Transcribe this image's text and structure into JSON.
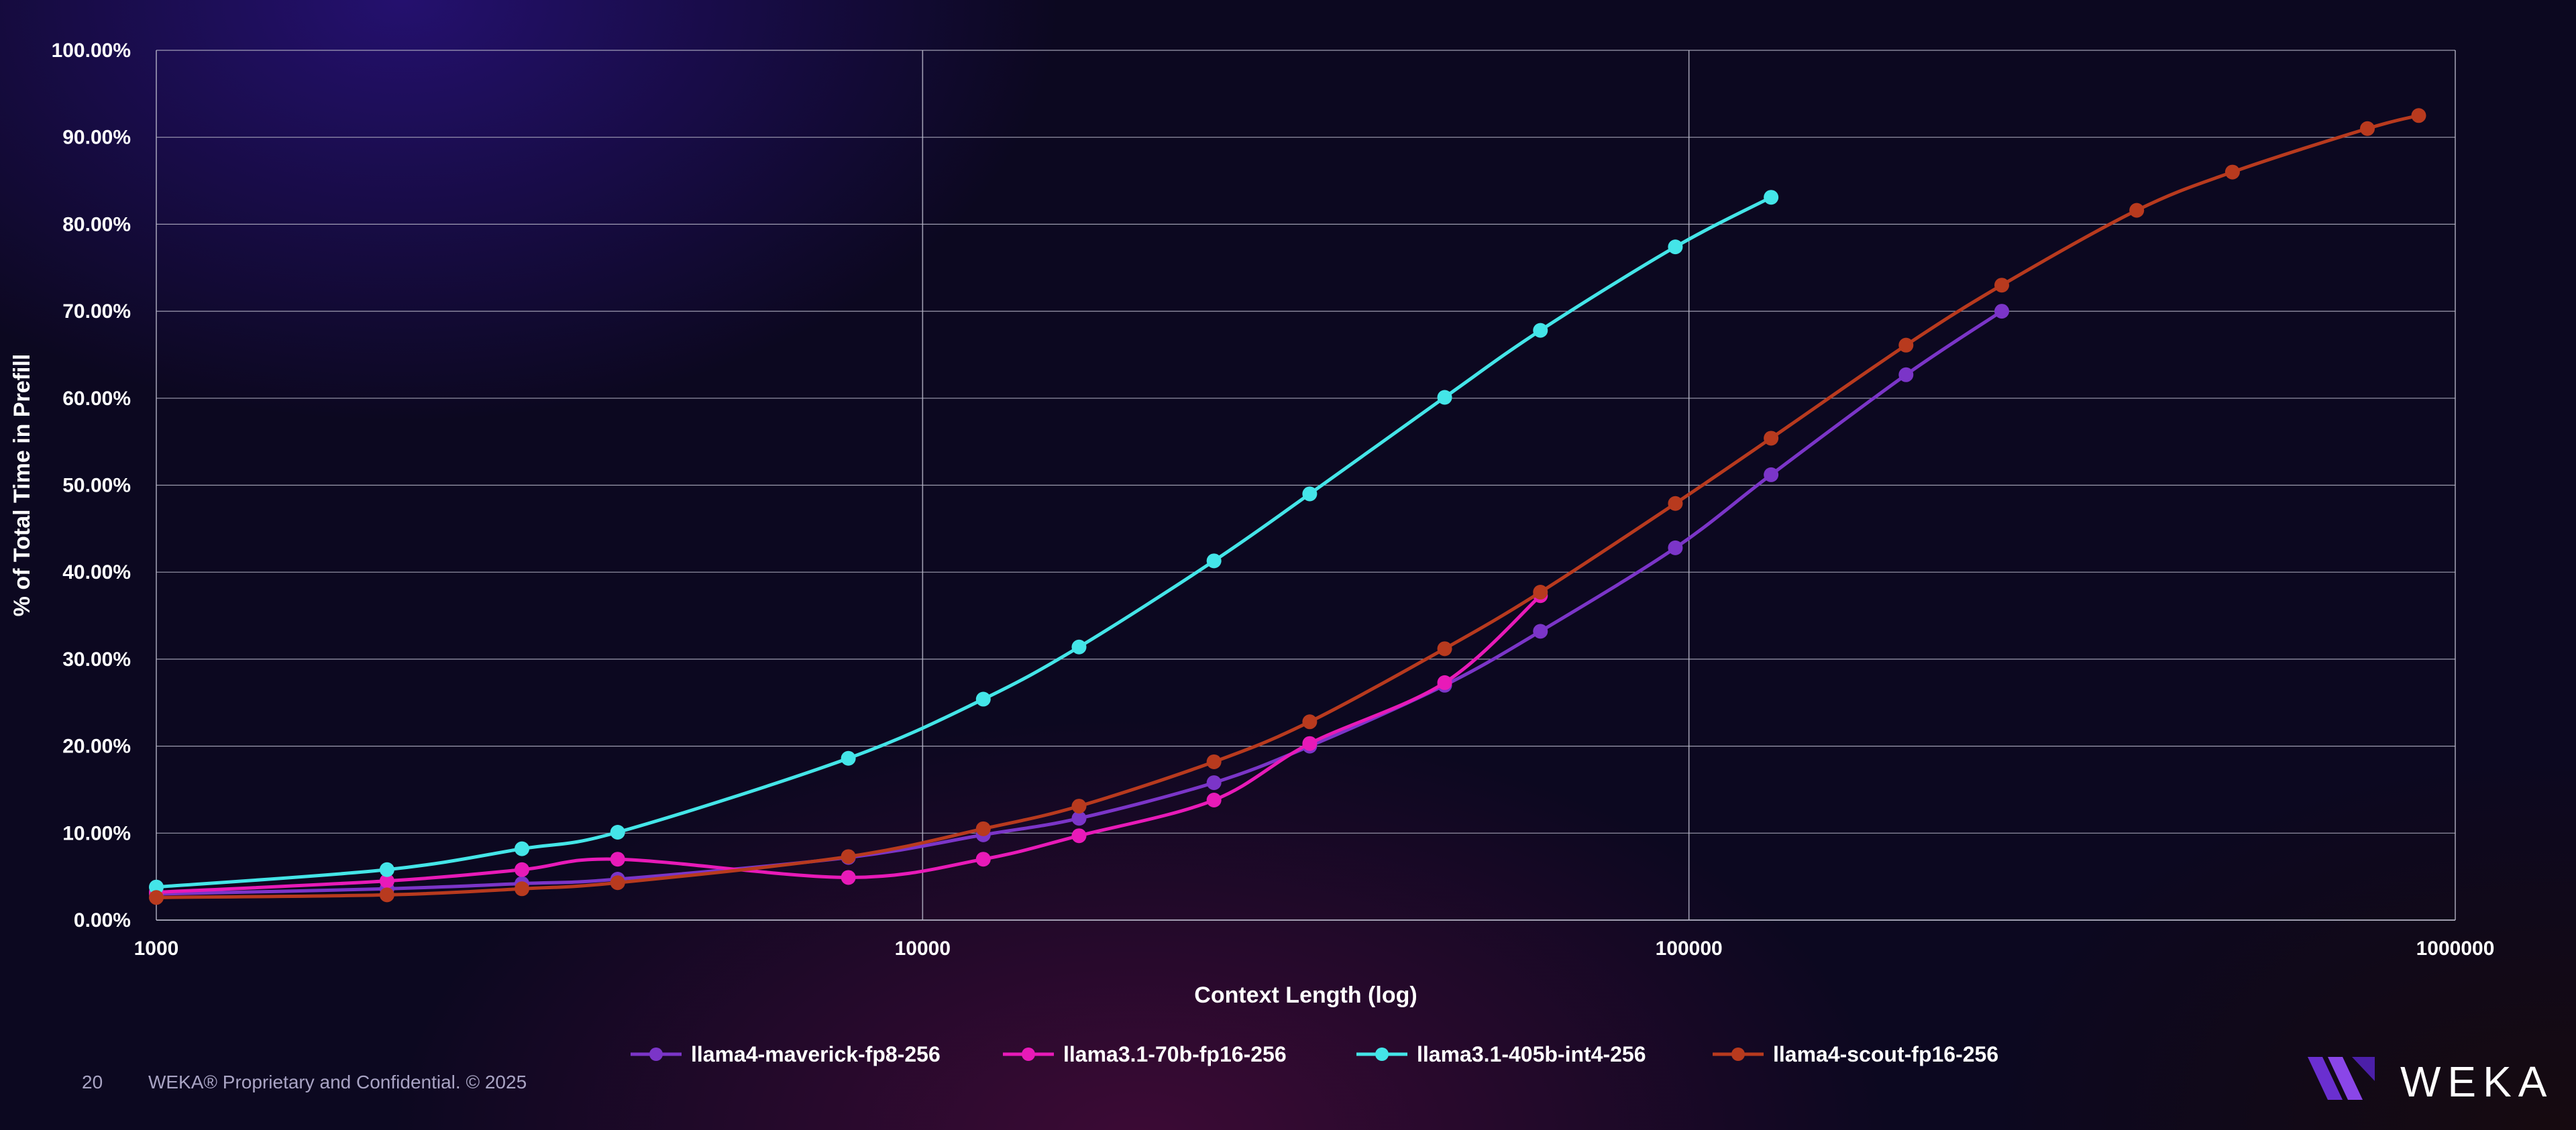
{
  "chart_data": {
    "type": "line",
    "xlabel": "Context Length (log)",
    "ylabel": "% of Total Time in Prefill",
    "xscale": "log",
    "xlim": [
      1000,
      1000000
    ],
    "ylim": [
      0,
      100
    ],
    "x_ticks": [
      "1000",
      "10000",
      "100000",
      "1000000"
    ],
    "y_ticks": [
      "0.00%",
      "10.00%",
      "20.00%",
      "30.00%",
      "40.00%",
      "50.00%",
      "60.00%",
      "70.00%",
      "80.00%",
      "90.00%",
      "100.00%"
    ],
    "grid": true,
    "legend_position": "bottom",
    "series": [
      {
        "name": "llama4-maverick-fp8-256",
        "color": "#7b35c8",
        "x": [
          1000,
          2000,
          3000,
          4000,
          8000,
          12000,
          16000,
          24000,
          32000,
          48000,
          64000,
          96000,
          128000,
          192000,
          256000
        ],
        "y": [
          3.0,
          3.6,
          4.2,
          4.7,
          7.2,
          9.8,
          11.7,
          15.8,
          20.0,
          27.0,
          33.2,
          42.8,
          51.2,
          62.7,
          70.0
        ]
      },
      {
        "name": "llama3.1-70b-fp16-256",
        "color": "#e81ab8",
        "x": [
          1000,
          2000,
          3000,
          4000,
          8000,
          12000,
          16000,
          24000,
          32000,
          48000,
          64000
        ],
        "y": [
          3.2,
          4.5,
          5.8,
          7.0,
          4.9,
          7.0,
          9.7,
          13.8,
          20.3,
          27.3,
          37.3
        ]
      },
      {
        "name": "llama3.1-405b-int4-256",
        "color": "#44e5e8",
        "x": [
          1000,
          2000,
          3000,
          4000,
          8000,
          12000,
          16000,
          24000,
          32000,
          48000,
          64000,
          96000,
          128000
        ],
        "y": [
          3.8,
          5.8,
          8.2,
          10.1,
          18.6,
          25.4,
          31.4,
          41.3,
          49.0,
          60.1,
          67.8,
          77.4,
          83.1
        ]
      },
      {
        "name": "llama4-scout-fp16-256",
        "color": "#b83a1e",
        "x": [
          1000,
          2000,
          3000,
          4000,
          8000,
          12000,
          16000,
          24000,
          32000,
          48000,
          64000,
          96000,
          128000,
          192000,
          256000,
          384000,
          512000,
          768000,
          896000
        ],
        "y": [
          2.6,
          2.9,
          3.6,
          4.3,
          7.3,
          10.5,
          13.1,
          18.2,
          22.8,
          31.2,
          37.7,
          47.9,
          55.4,
          66.1,
          73.0,
          81.6,
          86.0,
          91.0,
          92.5
        ]
      }
    ]
  },
  "footer": {
    "page_number": "20",
    "text": "WEKA® Proprietary and Confidential. © 2025"
  },
  "logo": {
    "text": "WEKA",
    "icon": "weka-logo-icon"
  }
}
